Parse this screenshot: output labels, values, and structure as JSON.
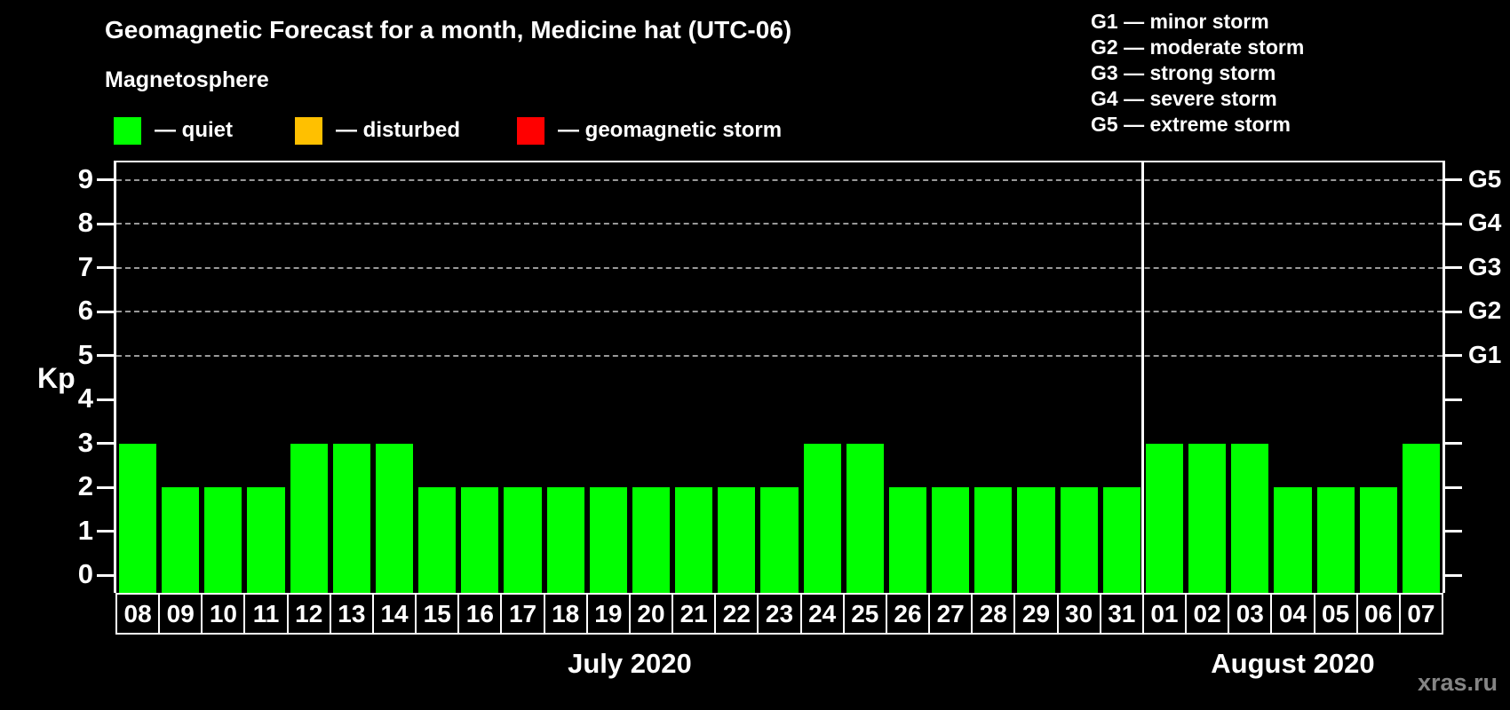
{
  "title": "Geomagnetic Forecast for a month, Medicine hat (UTC-06)",
  "legend": {
    "heading": "Magnetosphere",
    "items": [
      {
        "name": "quiet",
        "label": "— quiet",
        "color": "#00ff00"
      },
      {
        "name": "disturbed",
        "label": "— disturbed",
        "color": "#ffc000"
      },
      {
        "name": "geomagnetic-storm",
        "label": "— geomagnetic storm",
        "color": "#ff0000"
      }
    ]
  },
  "storm_scale_legend": [
    "G1 — minor storm",
    "G2 — moderate storm",
    "G3 — strong storm",
    "G4 — severe storm",
    "G5 — extreme storm"
  ],
  "watermark": "xras.ru",
  "chart_data": {
    "type": "bar",
    "title": "Geomagnetic Forecast for a month, Medicine hat (UTC-06)",
    "ylabel": "Kp",
    "ylim": [
      -0.4,
      9.4
    ],
    "yticks": [
      0,
      1,
      2,
      3,
      4,
      5,
      6,
      7,
      8,
      9
    ],
    "gridlines_at": [
      5,
      6,
      7,
      8,
      9
    ],
    "grid_color": "#999999",
    "bar_color": "#00ff00",
    "right_axis_labels": [
      {
        "label": "G1",
        "kp": 5
      },
      {
        "label": "G2",
        "kp": 6
      },
      {
        "label": "G3",
        "kp": 7
      },
      {
        "label": "G4",
        "kp": 8
      },
      {
        "label": "G5",
        "kp": 9
      }
    ],
    "categories": [
      "08",
      "09",
      "10",
      "11",
      "12",
      "13",
      "14",
      "15",
      "16",
      "17",
      "18",
      "19",
      "20",
      "21",
      "22",
      "23",
      "24",
      "25",
      "26",
      "27",
      "28",
      "29",
      "30",
      "31",
      "01",
      "02",
      "03",
      "04",
      "05",
      "06",
      "07"
    ],
    "values": [
      3,
      2,
      2,
      2,
      3,
      3,
      3,
      2,
      2,
      2,
      2,
      2,
      2,
      2,
      2,
      2,
      3,
      3,
      2,
      2,
      2,
      2,
      2,
      2,
      3,
      3,
      3,
      2,
      2,
      2,
      3
    ],
    "months": [
      {
        "label": "July 2020",
        "start_index": 0,
        "day_count": 24
      },
      {
        "label": "August 2020",
        "start_index": 24,
        "day_count": 7
      }
    ]
  }
}
